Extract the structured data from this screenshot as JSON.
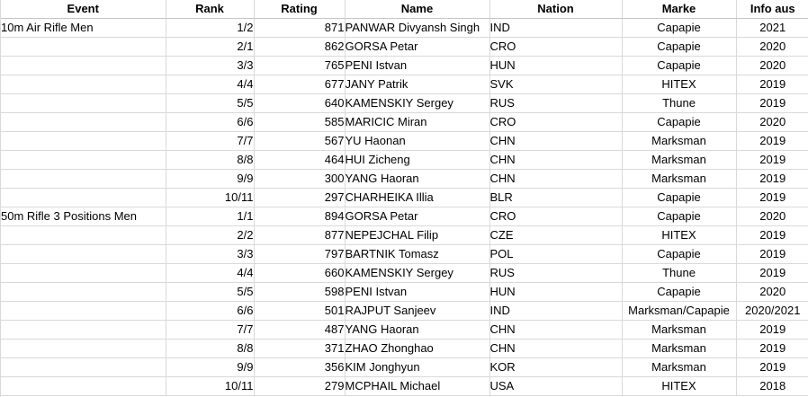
{
  "table": {
    "grid_color": "#d9d9d9",
    "text_color": "#000000",
    "background": "#ffffff",
    "columns": [
      {
        "key": "event",
        "label": "Event",
        "width": 183,
        "align": "al"
      },
      {
        "key": "rank",
        "label": "Rank",
        "width": 98,
        "align": "ar"
      },
      {
        "key": "rating",
        "label": "Rating",
        "width": 101,
        "align": "ar"
      },
      {
        "key": "name",
        "label": "Name",
        "width": 161,
        "align": "al"
      },
      {
        "key": "nation",
        "label": "Nation",
        "width": 147,
        "align": "ai"
      },
      {
        "key": "marke",
        "label": "Marke",
        "width": 127,
        "align": "ac"
      },
      {
        "key": "info_aus",
        "label": "Info aus",
        "width": 81,
        "align": "ac"
      }
    ],
    "rows": [
      [
        "10m Air Rifle Men",
        "1/2",
        "871",
        "PANWAR Divyansh Singh",
        "IND",
        "Capapie",
        "2021"
      ],
      [
        "",
        "2/1",
        "862",
        "GORSA Petar",
        "CRO",
        "Capapie",
        "2020"
      ],
      [
        "",
        "3/3",
        "765",
        "PENI Istvan",
        "HUN",
        "Capapie",
        "2020"
      ],
      [
        "",
        "4/4",
        "677",
        "JANY Patrik",
        "SVK",
        "HITEX",
        "2019"
      ],
      [
        "",
        "5/5",
        "640",
        "KAMENSKIY Sergey",
        "RUS",
        "Thune",
        "2019"
      ],
      [
        "",
        "6/6",
        "585",
        "MARICIC Miran",
        "CRO",
        "Capapie",
        "2020"
      ],
      [
        "",
        "7/7",
        "567",
        "YU Haonan",
        "CHN",
        "Marksman",
        "2019"
      ],
      [
        "",
        "8/8",
        "464",
        "HUI Zicheng",
        "CHN",
        "Marksman",
        "2019"
      ],
      [
        "",
        "9/9",
        "300",
        "YANG Haoran",
        "CHN",
        "Marksman",
        "2019"
      ],
      [
        "",
        "10/11",
        "297",
        "CHARHEIKA Illia",
        "BLR",
        "Capapie",
        "2019"
      ],
      [
        "50m Rifle 3 Positions Men",
        "1/1",
        "894",
        "GORSA Petar",
        "CRO",
        "Capapie",
        "2020"
      ],
      [
        "",
        "2/2",
        "877",
        "NEPEJCHAL Filip",
        "CZE",
        "HITEX",
        "2019"
      ],
      [
        "",
        "3/3",
        "797",
        "BARTNIK Tomasz",
        "POL",
        "Capapie",
        "2019"
      ],
      [
        "",
        "4/4",
        "660",
        "KAMENSKIY Sergey",
        "RUS",
        "Thune",
        "2019"
      ],
      [
        "",
        "5/5",
        "598",
        "PENI Istvan",
        "HUN",
        "Capapie",
        "2020"
      ],
      [
        "",
        "6/6",
        "501",
        "RAJPUT Sanjeev",
        "IND",
        "Marksman/Capapie",
        "2020/2021"
      ],
      [
        "",
        "7/7",
        "487",
        "YANG Haoran",
        "CHN",
        "Marksman",
        "2019"
      ],
      [
        "",
        "8/8",
        "371",
        "ZHAO Zhonghao",
        "CHN",
        "Marksman",
        "2019"
      ],
      [
        "",
        "9/9",
        "356",
        "KIM Jonghyun",
        "KOR",
        "Marksman",
        "2019"
      ],
      [
        "",
        "10/11",
        "279",
        "MCPHAIL Michael",
        "USA",
        "HITEX",
        "2018"
      ]
    ]
  }
}
